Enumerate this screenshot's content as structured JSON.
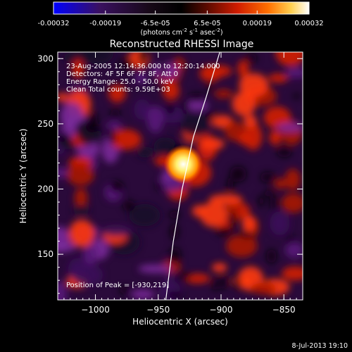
{
  "colorbar": {
    "tick_labels": [
      "-0.00032",
      "-0.00019",
      "-6.5e-05",
      "6.5e-05",
      "0.00019",
      "0.00032"
    ],
    "tick_values": [
      -0.00032,
      -0.00019,
      -6.5e-05,
      6.5e-05,
      0.00019,
      0.00032
    ],
    "range": [
      -0.00032,
      0.00032
    ],
    "units_base": "(photons cm",
    "units_exp1": "-2",
    "units_mid": " s",
    "units_exp2": "-1",
    "units_mid2": " asec",
    "units_exp3": "-2",
    "units_end": ")",
    "colors": [
      "#0000ff",
      "#3a1060",
      "#1a0a1a",
      "#000000",
      "#4a0a00",
      "#cc1a00",
      "#ff6a00",
      "#ffc840",
      "#ffffff"
    ]
  },
  "chart_data": {
    "type": "heatmap",
    "title": "Reconstructed RHESSI Image",
    "xlabel": "Heliocentric X (arcsec)",
    "ylabel": "Heliocentric Y (arcsec)",
    "xlim": [
      -1030,
      -835
    ],
    "ylim": [
      115,
      305
    ],
    "xticks": [
      -1000,
      -950,
      -900,
      -850
    ],
    "xtick_labels": [
      "−1000",
      "−950",
      "−900",
      "−850"
    ],
    "yticks": [
      150,
      200,
      250,
      300
    ],
    "ytick_labels": [
      "150",
      "200",
      "250",
      "300"
    ],
    "peak": [
      -930,
      219
    ],
    "limb_points": [
      [
        -901,
        305
      ],
      [
        -912,
        270
      ],
      [
        -922,
        240
      ],
      [
        -931,
        200
      ],
      [
        -938,
        160
      ],
      [
        -944,
        115
      ]
    ],
    "annotations": {
      "time": "23-Aug-2005 12:14:36.000 to 12:20:14.000",
      "detectors": "Detectors: 4F 5F 6F 7F 8F, Att 0",
      "energy": "Energy Range: 25.0 - 50.0 keV",
      "method": "Clean     Total counts: 9.59E+03",
      "peak_label": "Position of Peak = [-930,219]"
    },
    "grid": false,
    "colormap": "rhessi_blue_red"
  },
  "footer": {
    "timestamp": "8-Jul-2013 19:10"
  }
}
